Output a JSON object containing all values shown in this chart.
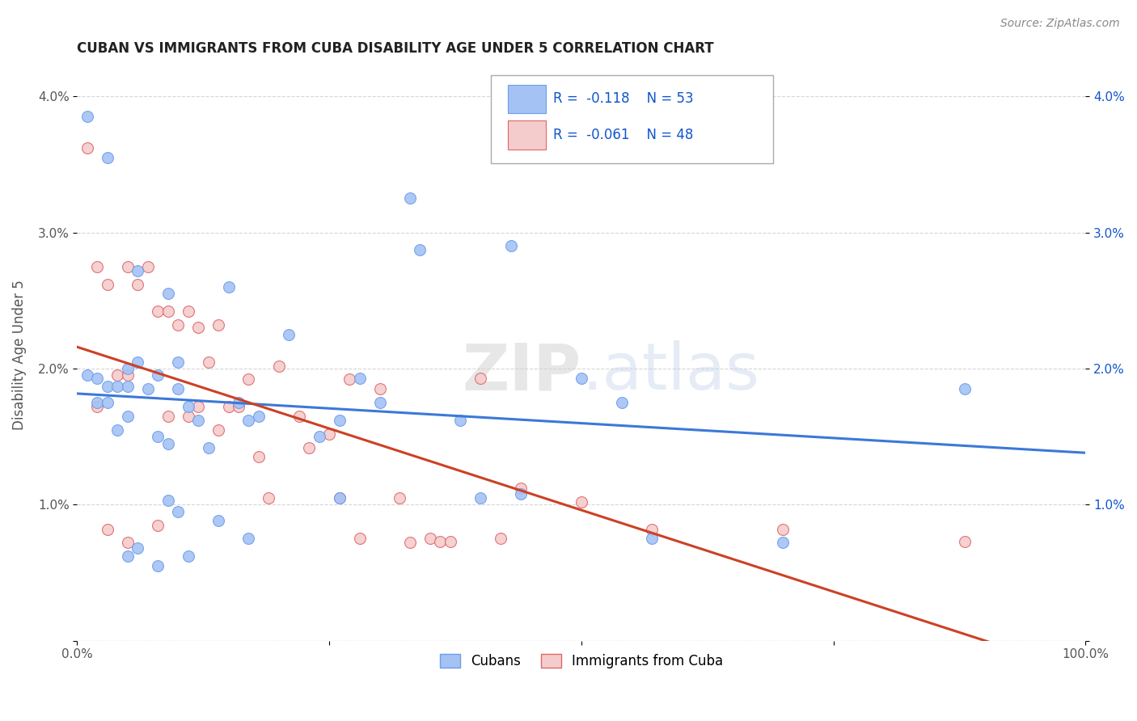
{
  "title": "CUBAN VS IMMIGRANTS FROM CUBA DISABILITY AGE UNDER 5 CORRELATION CHART",
  "source": "Source: ZipAtlas.com",
  "ylabel": "Disability Age Under 5",
  "legend_cubans": "Cubans",
  "legend_immigrants": "Immigrants from Cuba",
  "r_cubans": "-0.118",
  "n_cubans": "53",
  "r_immigrants": "-0.061",
  "n_immigrants": "48",
  "blue_color": "#a4c2f4",
  "pink_color": "#f4cccc",
  "blue_edge_color": "#6d9eeb",
  "pink_edge_color": "#e06666",
  "blue_line_color": "#3c78d8",
  "pink_line_color": "#cc4125",
  "blue_text_color": "#1155cc",
  "background_color": "#ffffff",
  "grid_color": "#cccccc",
  "cubans_x": [
    1,
    3,
    1,
    2,
    2,
    3,
    3,
    4,
    4,
    5,
    5,
    5,
    5,
    6,
    6,
    6,
    7,
    8,
    8,
    8,
    9,
    9,
    9,
    10,
    10,
    10,
    11,
    11,
    12,
    13,
    14,
    15,
    16,
    17,
    17,
    18,
    21,
    24,
    26,
    26,
    28,
    30,
    33,
    34,
    38,
    40,
    43,
    44,
    50,
    54,
    57,
    70,
    88
  ],
  "cubans_y": [
    3.85,
    3.55,
    1.95,
    1.75,
    1.93,
    1.87,
    1.75,
    1.87,
    1.55,
    2.0,
    1.87,
    1.65,
    0.62,
    2.72,
    2.05,
    0.68,
    1.85,
    1.95,
    1.5,
    0.55,
    2.55,
    1.45,
    1.03,
    2.05,
    1.85,
    0.95,
    1.72,
    0.62,
    1.62,
    1.42,
    0.88,
    2.6,
    1.75,
    1.62,
    0.75,
    1.65,
    2.25,
    1.5,
    1.62,
    1.05,
    1.93,
    1.75,
    3.25,
    2.87,
    1.62,
    1.05,
    2.9,
    1.08,
    1.93,
    1.75,
    0.75,
    0.72,
    1.85
  ],
  "immigrants_x": [
    1,
    2,
    2,
    3,
    3,
    4,
    5,
    5,
    5,
    6,
    7,
    8,
    8,
    9,
    9,
    10,
    11,
    11,
    12,
    12,
    13,
    14,
    14,
    15,
    16,
    17,
    18,
    19,
    20,
    22,
    23,
    25,
    26,
    27,
    28,
    30,
    32,
    33,
    35,
    36,
    37,
    40,
    42,
    44,
    50,
    57,
    70,
    88
  ],
  "immigrants_y": [
    3.62,
    2.75,
    1.72,
    2.62,
    0.82,
    1.95,
    2.75,
    1.95,
    0.72,
    2.62,
    2.75,
    2.42,
    0.85,
    2.42,
    1.65,
    2.32,
    2.42,
    1.65,
    2.3,
    1.72,
    2.05,
    2.32,
    1.55,
    1.72,
    1.72,
    1.92,
    1.35,
    1.05,
    2.02,
    1.65,
    1.42,
    1.52,
    1.05,
    1.92,
    0.75,
    1.85,
    1.05,
    0.72,
    0.75,
    0.73,
    0.73,
    1.93,
    0.75,
    1.12,
    1.02,
    0.82,
    0.82,
    0.73
  ],
  "xlim": [
    0,
    100
  ],
  "ylim": [
    0,
    4.2
  ],
  "yticks": [
    0,
    1.0,
    2.0,
    3.0,
    4.0
  ],
  "ytick_labels_left": [
    "",
    "1.0%",
    "2.0%",
    "3.0%",
    "4.0%"
  ],
  "ytick_labels_right": [
    "",
    "1.0%",
    "2.0%",
    "3.0%",
    "4.0%"
  ],
  "xtick_vals": [
    0,
    25,
    50,
    75,
    100
  ],
  "xtick_labels": [
    "0.0%",
    "",
    "",
    "",
    "100.0%"
  ],
  "watermark": "ZIP.atlas",
  "marker_size": 100
}
